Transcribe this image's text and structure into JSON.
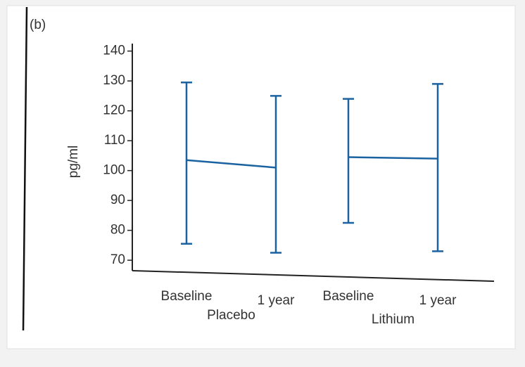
{
  "chart_data": {
    "type": "errorbar",
    "panel_label": "(b)",
    "ylabel": "pg/ml",
    "ylim": [
      66.5,
      142.5
    ],
    "yticks": [
      70,
      80,
      90,
      100,
      110,
      120,
      130,
      140
    ],
    "color": "#1a63a0",
    "groups": [
      {
        "name": "Placebo",
        "categories": [
          "Baseline",
          "1 year"
        ],
        "values": [
          103.5,
          101
        ],
        "lower": [
          75.5,
          72.5
        ],
        "upper": [
          129.5,
          125
        ]
      },
      {
        "name": "Lithium",
        "categories": [
          "Baseline",
          "1 year"
        ],
        "values": [
          104.5,
          104
        ],
        "lower": [
          82.5,
          73
        ],
        "upper": [
          124,
          129
        ]
      }
    ]
  }
}
